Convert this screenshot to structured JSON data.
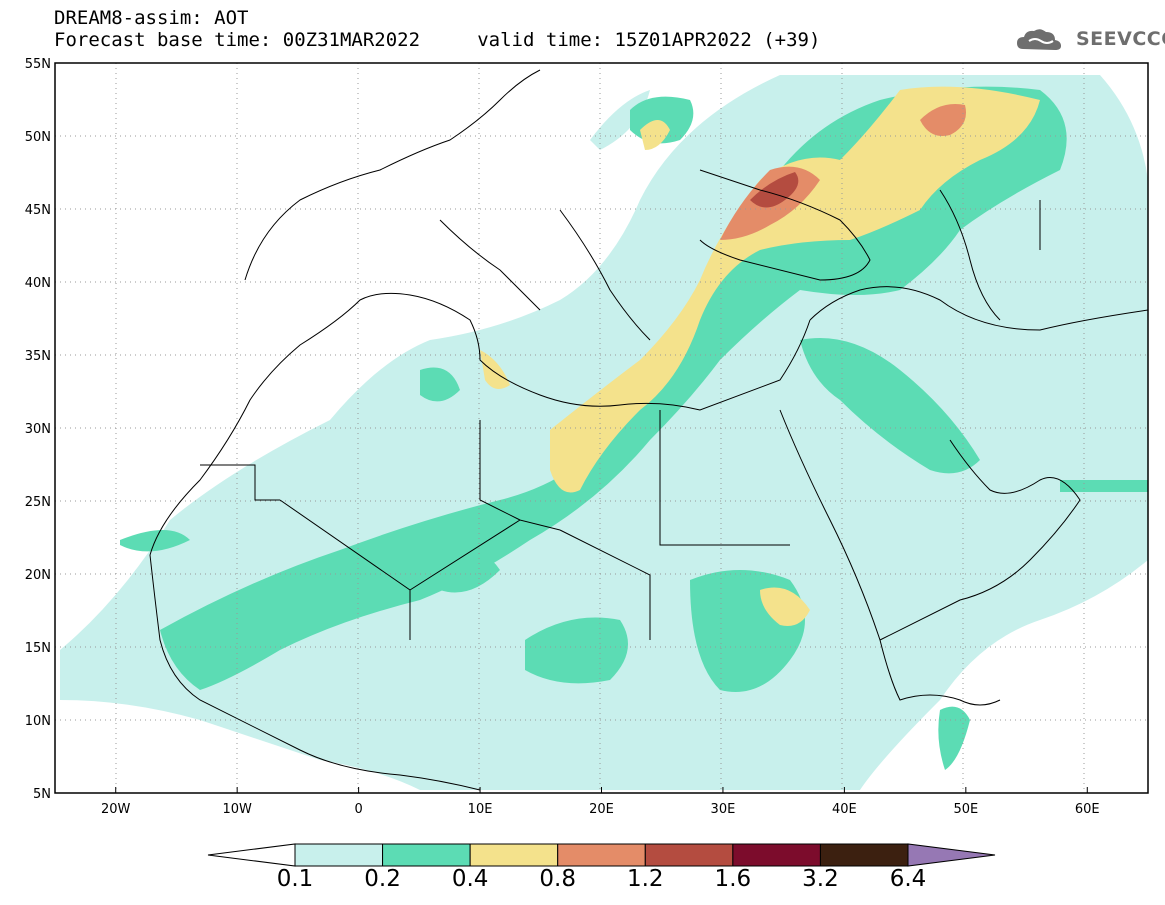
{
  "header": {
    "title_line1": "DREAM8-assim: AOT",
    "title_line2": "Forecast base time: 00Z31MAR2022     valid time: 15Z01APR2022 (+39)",
    "logo_text": "SEEVCCC"
  },
  "map": {
    "lon_range": [
      -25,
      65
    ],
    "lat_range": [
      5,
      55
    ],
    "lon_ticks": [
      "20W",
      "10W",
      "0",
      "10E",
      "20E",
      "30E",
      "40E",
      "50E",
      "60E"
    ],
    "lat_ticks": [
      "55N",
      "50N",
      "45N",
      "40N",
      "35N",
      "30N",
      "25N",
      "20N",
      "15N",
      "10N",
      "5N"
    ]
  },
  "colorbar": {
    "labels": [
      "0.1",
      "0.2",
      "0.4",
      "0.8",
      "1.2",
      "1.6",
      "3.2",
      "6.4"
    ],
    "colors": [
      "#c8f0ec",
      "#5cdcb4",
      "#f4e28c",
      "#e48c68",
      "#b44c40",
      "#7c0c2c",
      "#3c2010",
      "#9678b4"
    ]
  }
}
